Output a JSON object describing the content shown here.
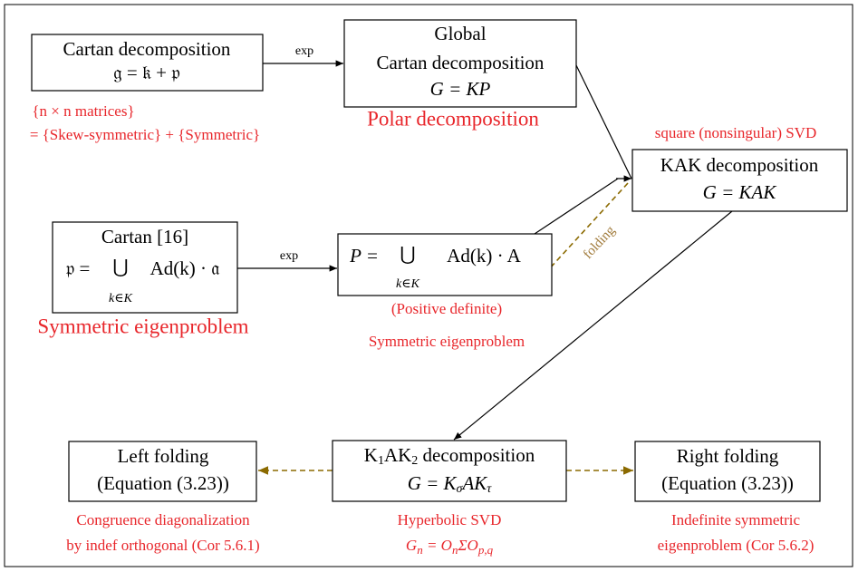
{
  "nodes": [
    {
      "lines": [
        "Cartan decomposition",
        "𝔤 = 𝔨 + 𝔭"
      ],
      "notes": [
        "{n × n matrices}",
        "= {Skew-symmetric} + {Symmetric}"
      ]
    },
    {
      "lines": [
        "Global",
        "Cartan decomposition",
        "G = KP"
      ],
      "notes": [
        "Polar decomposition"
      ]
    },
    {
      "lines": [
        "KAK decomposition",
        "G = KAK"
      ],
      "notes": [
        "square (nonsingular) SVD"
      ]
    },
    {
      "lines": [
        "Cartan [16]"
      ],
      "formula": {
        "lhs": "𝔭 =",
        "op": "⋃",
        "sub": "k∈K",
        "rhs": "Ad(k) · 𝔞"
      },
      "notes": [
        "Symmetric eigenproblem"
      ]
    },
    {
      "formula": {
        "lhs": "P =",
        "op": "⋃",
        "sub": "k∈K",
        "rhs": "Ad(k) · A"
      },
      "notes": [
        "(Positive definite)",
        "Symmetric eigenproblem"
      ]
    },
    {
      "lines": [
        "K",
        "1",
        "AK",
        "2",
        " decomposition"
      ],
      "formula2": [
        "G = K",
        "σ",
        "AK",
        "τ"
      ],
      "notes": [
        "Hyperbolic SVD"
      ],
      "notes_formula": [
        "G",
        "n",
        " = O",
        "n",
        "ΣO",
        "p,q"
      ]
    },
    {
      "lines": [
        "Left folding",
        "(Equation (3.23))"
      ],
      "notes": [
        "Congruence diagonalization",
        "by indef orthogonal (Cor 5.6.1)"
      ]
    },
    {
      "lines": [
        "Right folding",
        "(Equation (3.23))"
      ],
      "notes": [
        "Indefinite symmetric",
        "eigenproblem (Cor 5.6.2)"
      ]
    }
  ],
  "edges": [
    {
      "label": "exp"
    },
    {
      "label": "exp"
    },
    {
      "label": "folding"
    }
  ]
}
